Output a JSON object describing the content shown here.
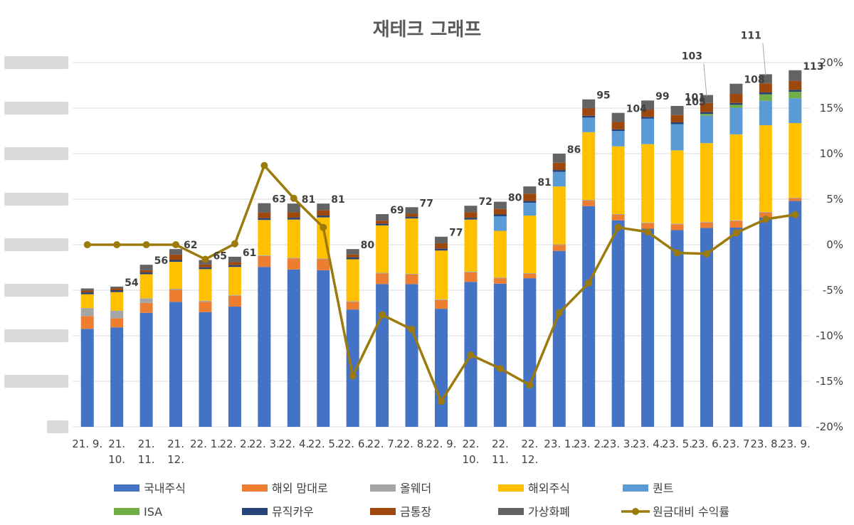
{
  "chart_data": {
    "type": "bar",
    "title": "재테크 그래프",
    "stacked": true,
    "categories": [
      "21. 9.",
      "21. 10.",
      "21. 11.",
      "21. 12.",
      "22. 1.",
      "22. 2.",
      "22. 3.",
      "22. 4.",
      "22. 5.",
      "22. 6.",
      "22. 7.",
      "22. 8.",
      "22. 9.",
      "22. 10.",
      "22. 11.",
      "22. 12.",
      "23. 1.",
      "23. 2.",
      "23. 3.",
      "23. 4.",
      "23. 5.",
      "23. 6.",
      "23. 7",
      "23. 8.",
      "23. 9."
    ],
    "left_axis": {
      "min": 0,
      "max": 100,
      "step": 12.5,
      "tick_labels_obscured": true
    },
    "right_axis": {
      "min": -20,
      "max": 20,
      "step": 5,
      "ticks": [
        "20%",
        "15%",
        "10%",
        "5%",
        "0%",
        "-5%",
        "-10%",
        "-15%",
        "-20%"
      ]
    },
    "grid": true,
    "legend_position": "bottom",
    "series": [
      {
        "name": "국내주식",
        "color": "#4472C4",
        "values": [
          26.9,
          27.3,
          31.3,
          34.3,
          31.5,
          33.0,
          43.9,
          43.2,
          43.0,
          32.2,
          39.2,
          39.2,
          32.4,
          39.8,
          39.3,
          40.8,
          48.3,
          60.6,
          56.7,
          54.4,
          54.0,
          54.6,
          54.7,
          57.5,
          62.0
        ]
      },
      {
        "name": "해외 맘대로",
        "color": "#ED7D31",
        "values": [
          3.5,
          2.5,
          2.7,
          3.3,
          2.8,
          3.0,
          3.0,
          3.0,
          3.0,
          2.1,
          2.9,
          2.6,
          2.4,
          2.6,
          1.5,
          1.2,
          1.6,
          1.5,
          1.5,
          1.5,
          1.6,
          1.5,
          1.8,
          1.3,
          0.7
        ]
      },
      {
        "name": "올웨더",
        "color": "#A5A5A5",
        "values": [
          2.2,
          2.1,
          1.3,
          0.3,
          0.3,
          0.2,
          0.2,
          0.2,
          0.2,
          0.2,
          0.2,
          0.2,
          0.2,
          0.2,
          0.2,
          0.2,
          0.2,
          0.2,
          0.2,
          0.2,
          0.2,
          0.2,
          0.2,
          0.2,
          0.2
        ]
      },
      {
        "name": "해외주식",
        "color": "#FFC000",
        "values": [
          3.8,
          5.1,
          6.6,
          7.4,
          8.7,
          7.7,
          9.7,
          10.5,
          11.3,
          11.5,
          13.0,
          15.2,
          13.4,
          14.3,
          12.8,
          15.8,
          15.9,
          18.6,
          18.6,
          21.5,
          20.1,
          21.6,
          23.6,
          23.8,
          20.5
        ]
      },
      {
        "name": "퀀트",
        "color": "#5B9BD5",
        "values": [
          0,
          0,
          0,
          0,
          0,
          0,
          0,
          0,
          0,
          0,
          0,
          0,
          0,
          0,
          4.0,
          3.5,
          4.0,
          4.0,
          4.2,
          7.0,
          7.2,
          7.5,
          7.3,
          6.7,
          6.8
        ]
      },
      {
        "name": "ISA",
        "color": "#70AD47",
        "values": [
          0,
          0,
          0,
          0,
          0,
          0,
          0,
          0,
          0,
          0,
          0,
          0,
          0,
          0,
          0,
          0,
          0,
          0,
          0,
          0,
          0,
          0.5,
          0.8,
          1.8,
          1.8
        ]
      },
      {
        "name": "뮤직카우",
        "color": "#264478",
        "values": [
          0.5,
          0.5,
          0.5,
          0.5,
          0.5,
          0.5,
          0.5,
          0.5,
          0.5,
          0.5,
          0.5,
          0.5,
          0.5,
          0.5,
          0.5,
          0.5,
          0.5,
          0.5,
          0.5,
          0.5,
          0.5,
          0.5,
          0.5,
          0.5,
          0.5
        ]
      },
      {
        "name": "금통장",
        "color": "#9E480E",
        "values": [
          0.5,
          0.5,
          0.6,
          1.5,
          0.8,
          0.8,
          1.5,
          1.5,
          1.5,
          0.8,
          0.8,
          0.8,
          1.5,
          1.5,
          1.5,
          2.0,
          2.0,
          2.0,
          2.0,
          2.0,
          2.0,
          2.5,
          2.5,
          2.5,
          2.5
        ]
      },
      {
        "name": "가상화폐",
        "color": "#636363",
        "values": [
          0.6,
          0.5,
          1.5,
          1.5,
          1.2,
          1.5,
          2.6,
          2.4,
          1.8,
          1.5,
          1.8,
          1.8,
          1.8,
          1.8,
          2.0,
          2.0,
          2.5,
          2.5,
          2.5,
          2.5,
          2.5,
          2.2,
          2.8,
          2.5,
          2.9
        ]
      }
    ],
    "line_series": {
      "name": "원금대비 수익률",
      "color": "#9C7A0B",
      "axis": "right",
      "values": [
        0,
        0,
        0,
        0,
        -1.6,
        0.1,
        8.7,
        5.1,
        1.9,
        -14.4,
        -7.7,
        -9.3,
        -17.2,
        -12.1,
        -13.6,
        -15.4,
        -7.5,
        -4.2,
        1.9,
        1.4,
        -0.9,
        -1.0,
        1.3,
        2.8,
        3.3
      ]
    },
    "data_labels": [
      {
        "index": 1,
        "text": "54"
      },
      {
        "index": 2,
        "text": "56"
      },
      {
        "index": 3,
        "text": "62"
      },
      {
        "index": 4,
        "text": "65"
      },
      {
        "index": 5,
        "text": "61"
      },
      {
        "index": 6,
        "text": "63"
      },
      {
        "index": 7,
        "text": "81"
      },
      {
        "index": 8,
        "text": "81"
      },
      {
        "index": 9,
        "text": "80"
      },
      {
        "index": 10,
        "text": "69"
      },
      {
        "index": 11,
        "text": "77"
      },
      {
        "index": 12,
        "text": "77"
      },
      {
        "index": 13,
        "text": "72"
      },
      {
        "index": 14,
        "text": "80"
      },
      {
        "index": 15,
        "text": "81"
      },
      {
        "index": 16,
        "text": "86"
      },
      {
        "index": 17,
        "text": "95"
      },
      {
        "index": 18,
        "text": "104"
      },
      {
        "index": 19,
        "text": "99"
      },
      {
        "index": 20,
        "text": "105"
      },
      {
        "index": 21,
        "text": "103",
        "leader": true
      },
      {
        "index": 21,
        "text": "101"
      },
      {
        "index": 22,
        "text": "108"
      },
      {
        "index": 23,
        "text": "111",
        "leader": true
      },
      {
        "index": 24,
        "text": "113"
      }
    ],
    "legend": [
      "국내주식",
      "해외 맘대로",
      "올웨더",
      "해외주식",
      "퀀트",
      "ISA",
      "뮤직카우",
      "금통장",
      "가상화폐",
      "원금대비 수익률"
    ]
  }
}
